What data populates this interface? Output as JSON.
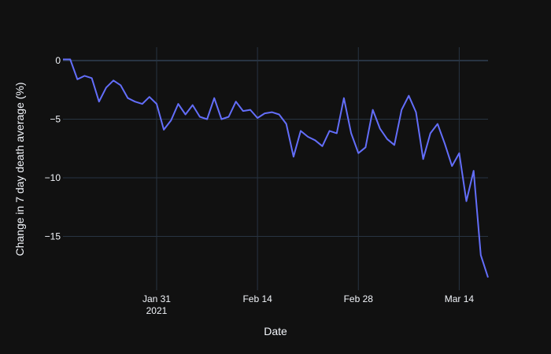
{
  "chart_data": {
    "type": "line",
    "title": "",
    "xlabel": "Date",
    "ylabel": "Change in 7 day death average (%)",
    "x_tick_labels": [
      "Jan 31",
      "Feb 14",
      "Feb 28",
      "Mar 14"
    ],
    "x_tick_year": "2021",
    "y_tick_labels": [
      "0",
      "−5",
      "−10",
      "−15"
    ],
    "y_ticks": [
      0,
      -5,
      -10,
      -15
    ],
    "ylim": [
      -18.5,
      1.15
    ],
    "xlim": [
      "2021-01-18",
      "2021-03-18"
    ],
    "grid": true,
    "line_color": "#636efa",
    "background": "#111111",
    "x": [
      "2021-01-18",
      "2021-01-19",
      "2021-01-20",
      "2021-01-21",
      "2021-01-22",
      "2021-01-23",
      "2021-01-24",
      "2021-01-25",
      "2021-01-26",
      "2021-01-27",
      "2021-01-28",
      "2021-01-29",
      "2021-01-30",
      "2021-01-31",
      "2021-02-01",
      "2021-02-02",
      "2021-02-03",
      "2021-02-04",
      "2021-02-05",
      "2021-02-06",
      "2021-02-07",
      "2021-02-08",
      "2021-02-09",
      "2021-02-10",
      "2021-02-11",
      "2021-02-12",
      "2021-02-13",
      "2021-02-14",
      "2021-02-15",
      "2021-02-16",
      "2021-02-17",
      "2021-02-18",
      "2021-02-19",
      "2021-02-20",
      "2021-02-21",
      "2021-02-22",
      "2021-02-23",
      "2021-02-24",
      "2021-02-25",
      "2021-02-26",
      "2021-02-27",
      "2021-02-28",
      "2021-03-01",
      "2021-03-02",
      "2021-03-03",
      "2021-03-04",
      "2021-03-05",
      "2021-03-06",
      "2021-03-07",
      "2021-03-08",
      "2021-03-09",
      "2021-03-10",
      "2021-03-11",
      "2021-03-12",
      "2021-03-13",
      "2021-03-14",
      "2021-03-15",
      "2021-03-16",
      "2021-03-17",
      "2021-03-18"
    ],
    "series": [
      {
        "name": "Change in 7 day death average (%)",
        "values": [
          0.1,
          0.1,
          -1.6,
          -1.3,
          -1.5,
          -3.5,
          -2.3,
          -1.7,
          -2.1,
          -3.2,
          -3.5,
          -3.7,
          -3.1,
          -3.7,
          -5.9,
          -5.1,
          -3.7,
          -4.6,
          -3.8,
          -4.8,
          -5.0,
          -3.2,
          -5.0,
          -4.8,
          -3.5,
          -4.3,
          -4.2,
          -4.9,
          -4.5,
          -4.4,
          -4.6,
          -5.4,
          -8.2,
          -6.0,
          -6.5,
          -6.8,
          -7.3,
          -6.0,
          -6.2,
          -3.2,
          -6.2,
          -7.9,
          -7.4,
          -4.2,
          -5.8,
          -6.7,
          -7.2,
          -4.2,
          -3.0,
          -4.4,
          -8.4,
          -6.2,
          -5.4,
          -7.1,
          -9.0,
          -7.9,
          -12.0,
          -9.4,
          -16.6,
          -18.5
        ]
      }
    ]
  }
}
